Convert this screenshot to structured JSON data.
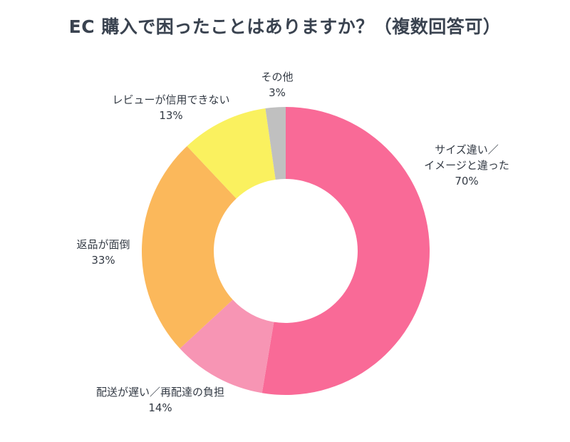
{
  "title": "EC 購入で困ったことはありますか？（複数回答可）",
  "chart_data": {
    "type": "pie",
    "variant": "donut",
    "categories": [
      "サイズ違い／イメージと違った",
      "配送が遅い／再配達の負担",
      "返品が面倒",
      "レビューが信用できない",
      "その他"
    ],
    "label_lines": [
      [
        "サイズ違い／",
        "イメージと違った"
      ],
      [
        "配送が遅い／再配達の負担"
      ],
      [
        "返品が面倒"
      ],
      [
        "レビューが信用できない"
      ],
      [
        "その他"
      ]
    ],
    "values": [
      70,
      14,
      33,
      13,
      3
    ],
    "value_labels": [
      "70%",
      "14%",
      "33%",
      "13%",
      "3%"
    ],
    "colors": [
      "#f96a97",
      "#f795b4",
      "#fbb85b",
      "#faf15f",
      "#c0c0c0"
    ]
  }
}
